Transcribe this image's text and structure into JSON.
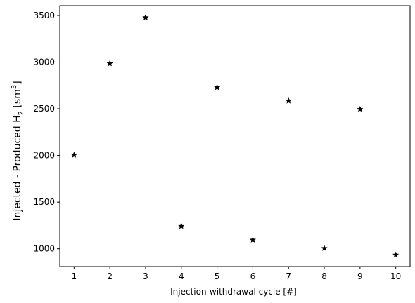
{
  "chart_data": {
    "type": "scatter",
    "title": "",
    "xlabel": "Injection-withdrawal cycle [#]",
    "ylabel_parts": {
      "main": "Injected - Produced H",
      "subscript": "2",
      "unit_open": " [sm",
      "superscript": "3",
      "unit_close": "]"
    },
    "xlim": [
      0.6,
      10.4
    ],
    "ylim": [
      810,
      3605
    ],
    "xticks": [
      1,
      2,
      3,
      4,
      5,
      6,
      7,
      8,
      9,
      10
    ],
    "yticks": [
      1000,
      1500,
      2000,
      2500,
      3000,
      3500
    ],
    "marker": "star",
    "marker_color": "#000000",
    "grid": false,
    "legend": "none",
    "x": [
      1,
      2,
      3,
      4,
      5,
      6,
      7,
      8,
      9,
      10
    ],
    "y": [
      2005,
      2985,
      3478,
      1242,
      2730,
      1095,
      2585,
      1005,
      2495,
      935
    ]
  }
}
